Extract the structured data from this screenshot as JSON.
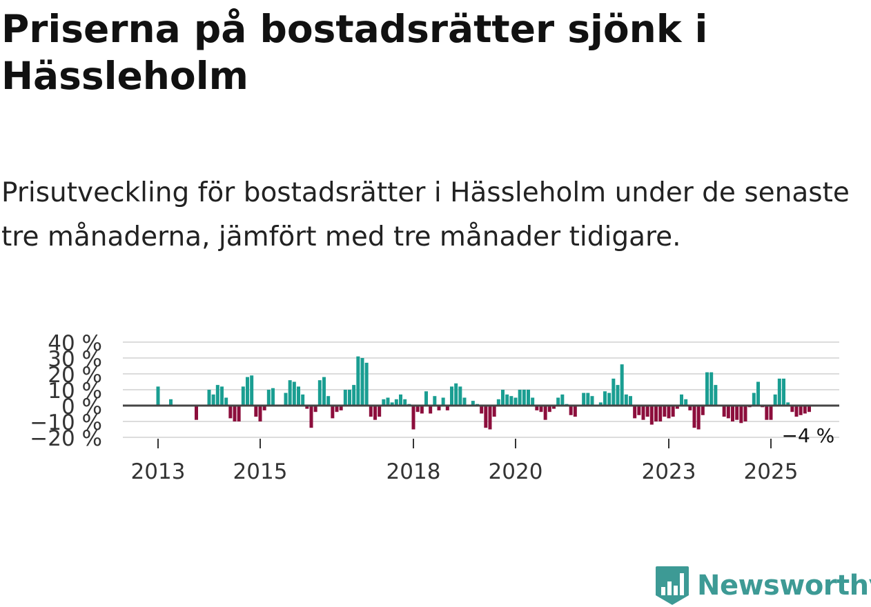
{
  "title": "Priserna på bostadsrätter sjönk i Hässleholm",
  "subtitle": "Prisutveckling för bostadsrätter i Hässleholm under de senaste tre månaderna, jämfört med tre månader tidigare.",
  "brand": {
    "name": "Newsworthy",
    "icon": "newsworthy-logo-icon",
    "color": "#3d9a95"
  },
  "chart_data": {
    "type": "bar",
    "title": "",
    "xlabel": "",
    "ylabel": "",
    "y_unit": "%",
    "ylim": [
      -20,
      40
    ],
    "y_ticks": [
      40,
      30,
      20,
      10,
      0,
      -10,
      -20
    ],
    "y_tick_labels": [
      "40 %",
      "30 %",
      "20 %",
      "10 %",
      "0 %",
      "−10 %",
      "−20 %"
    ],
    "x_ticks": [
      2013,
      2015,
      2018,
      2020,
      2023,
      2025
    ],
    "x_tick_labels": [
      "2013",
      "2015",
      "2018",
      "2020",
      "2023",
      "2025"
    ],
    "grid": true,
    "positive_color": "#1a9e92",
    "negative_color": "#8c0e3c",
    "start": [
      2013,
      1
    ],
    "last_value_label": "−4 %",
    "values": [
      12,
      0,
      0,
      4,
      0,
      0,
      0,
      0,
      0,
      -9,
      0,
      0,
      10,
      7,
      13,
      12,
      5,
      -8,
      -10,
      -10,
      12,
      18,
      19,
      -7,
      -10,
      -3,
      10,
      11,
      0,
      0,
      8,
      16,
      15,
      12,
      7,
      -2,
      -14,
      -4,
      16,
      18,
      6,
      -8,
      -4,
      -3,
      10,
      10,
      13,
      31,
      30,
      27,
      -7,
      -9,
      -7,
      4,
      5,
      2,
      4,
      7,
      4,
      1,
      -15,
      -4,
      -5,
      9,
      -5,
      6,
      -3,
      5,
      -3,
      12,
      14,
      12,
      5,
      0,
      3,
      1,
      -5,
      -14,
      -15,
      -7,
      4,
      10,
      7,
      6,
      5,
      10,
      10,
      10,
      5,
      -3,
      -4,
      -9,
      -4,
      -2,
      5,
      7,
      1,
      -6,
      -7,
      0,
      8,
      8,
      6,
      0,
      2,
      9,
      8,
      17,
      13,
      26,
      7,
      6,
      -8,
      -6,
      -9,
      -7,
      -12,
      -10,
      -10,
      -7,
      -8,
      -7,
      -2,
      7,
      4,
      -3,
      -14,
      -15,
      -6,
      21,
      21,
      13,
      0,
      -7,
      -8,
      -10,
      -9,
      -11,
      -10,
      -1,
      8,
      15,
      -1,
      -9,
      -9,
      7,
      17,
      17,
      2,
      -4,
      -7,
      -6,
      -5,
      -4
    ]
  }
}
